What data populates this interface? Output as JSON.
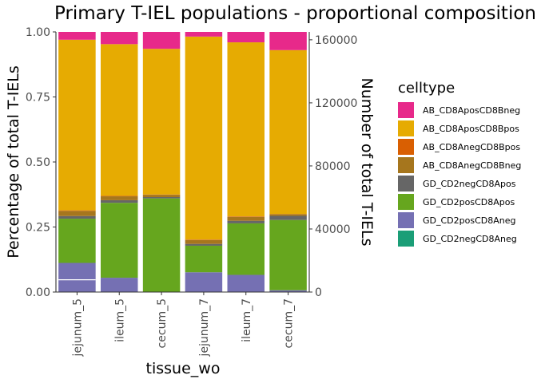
{
  "chart_data": {
    "type": "bar",
    "stacked": true,
    "title": "Primary T-IEL populations - proportional compositions",
    "xlabel": "tissue_wo",
    "ylabel": "Percentage of total T-IELs",
    "y2label": "Number of total T-IELs",
    "ylim": [
      0,
      1
    ],
    "y_ticks": [
      "0.00",
      "0.25",
      "0.50",
      "0.75",
      "1.00"
    ],
    "y2lim": [
      0,
      165000
    ],
    "y2_ticks": [
      "0",
      "40000",
      "80000",
      "120000",
      "160000"
    ],
    "categories": [
      "jejunum_5",
      "ileum_5",
      "cecum_5",
      "jejunum_7",
      "ileum_7",
      "cecum_7"
    ],
    "legend_title": "celltype",
    "legend_position": "right",
    "grid": false,
    "series": [
      {
        "name": "AB_CD8AposCD8Bneg",
        "color": "#E7298A",
        "values": [
          0.03,
          0.047,
          0.065,
          0.018,
          0.04,
          0.07
        ]
      },
      {
        "name": "AB_CD8AposCD8Bpos",
        "color": "#E6AB02",
        "values": [
          0.656,
          0.583,
          0.56,
          0.78,
          0.669,
          0.63
        ]
      },
      {
        "name": "AB_CD8AnegCD8Bpos",
        "color": "#D95F02",
        "values": [
          0.002,
          0.002,
          0.001,
          0.002,
          0.002,
          0.001
        ]
      },
      {
        "name": "AB_CD8AnegCD8Bneg",
        "color": "#A6761D",
        "values": [
          0.02,
          0.015,
          0.009,
          0.015,
          0.015,
          0.006
        ]
      },
      {
        "name": "GD_CD2negCD8Apos",
        "color": "#666666",
        "values": [
          0.01,
          0.01,
          0.005,
          0.007,
          0.01,
          0.016
        ]
      },
      {
        "name": "GD_CD2posCD8Apos",
        "color": "#66A61E",
        "values": [
          0.17,
          0.288,
          0.36,
          0.102,
          0.198,
          0.27
        ]
      },
      {
        "name": "GD_CD2posCD8Aneg",
        "color": "#7570B3",
        "values": [
          0.112,
          0.055,
          0.0,
          0.076,
          0.066,
          0.007
        ]
      },
      {
        "name": "GD_CD2negCD8Aneg",
        "color": "#1B9E77",
        "values": [
          0.0,
          0.0,
          0.0,
          0.0,
          0.0,
          0.0
        ]
      }
    ],
    "count_line": {
      "color": "#ffffff",
      "values": [
        7800,
        0,
        0,
        0,
        0,
        0
      ]
    }
  }
}
